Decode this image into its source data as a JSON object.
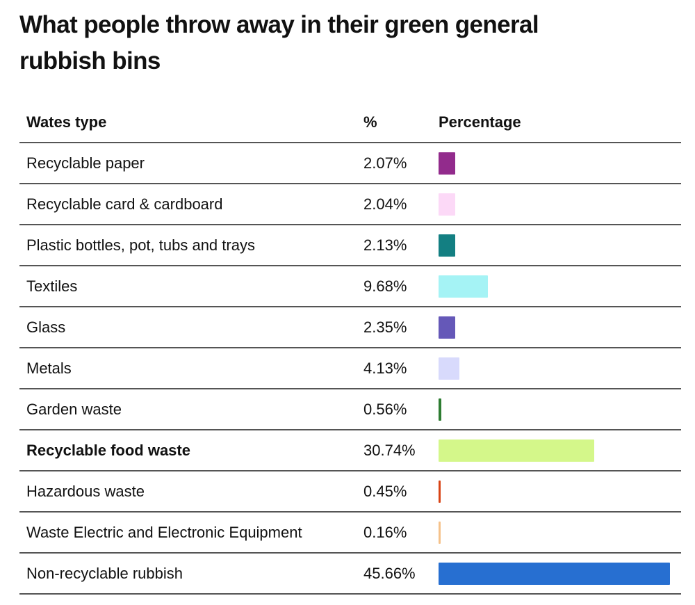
{
  "title": "What people throw away in their green general rubbish bins",
  "headers": {
    "type": "Wates type",
    "pct": "%",
    "bar": "Percentage"
  },
  "chart_data": {
    "type": "table",
    "title": "What people throw away in their green general rubbish bins",
    "columns": [
      "Wates type",
      "%",
      "Percentage"
    ],
    "xlim": [
      0,
      100
    ],
    "rows": [
      {
        "label": "Recyclable paper",
        "value": 2.07,
        "display": "2.07%",
        "color": "#922b8c",
        "bold": false
      },
      {
        "label": "Recyclable card & cardboard",
        "value": 2.04,
        "display": "2.04%",
        "color": "#fcd9f7",
        "bold": false
      },
      {
        "label": "Plastic bottles, pot, tubs and trays",
        "value": 2.13,
        "display": "2.13%",
        "color": "#137f82",
        "bold": false
      },
      {
        "label": "Textiles",
        "value": 9.68,
        "display": "9.68%",
        "color": "#a5f3f5",
        "bold": false
      },
      {
        "label": "Glass",
        "value": 2.35,
        "display": "2.35%",
        "color": "#6558b8",
        "bold": false
      },
      {
        "label": "Metals",
        "value": 4.13,
        "display": "4.13%",
        "color": "#d8dafc",
        "bold": false
      },
      {
        "label": "Garden waste",
        "value": 0.56,
        "display": "0.56%",
        "color": "#2e7d32",
        "bold": false
      },
      {
        "label": "Recyclable food waste",
        "value": 30.74,
        "display": "30.74%",
        "color": "#d4f78a",
        "bold": true
      },
      {
        "label": "Hazardous waste",
        "value": 0.45,
        "display": "0.45%",
        "color": "#d84315",
        "bold": false
      },
      {
        "label": "Waste Electric and Electronic Equipment",
        "value": 0.16,
        "display": "0.16%",
        "color": "#f5c28a",
        "bold": false
      },
      {
        "label": "Non-recyclable rubbish",
        "value": 45.66,
        "display": "45.66%",
        "color": "#276fd1",
        "bold": false
      }
    ]
  }
}
